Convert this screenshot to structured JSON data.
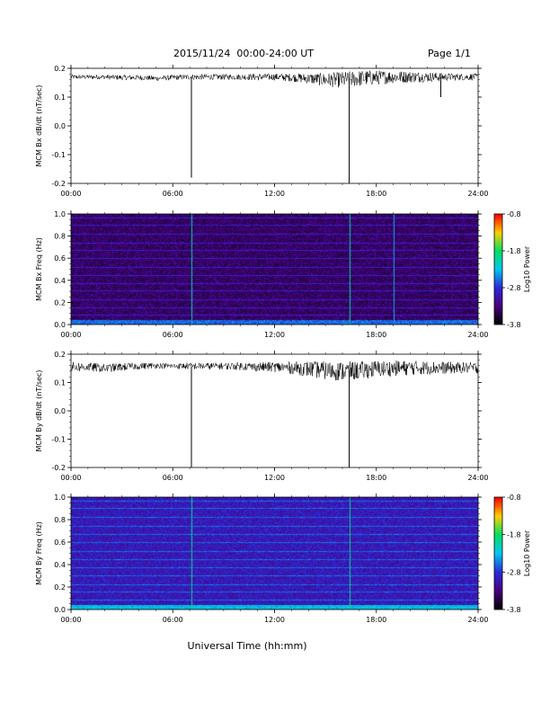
{
  "header": {
    "date_range": "2015/11/24  00:00-24:00 UT",
    "page": "Page 1/1"
  },
  "colors": {
    "trace": "#000000",
    "colormap": [
      "#000000",
      "#4b0082",
      "#2a2bd8",
      "#00c8f0",
      "#00e060",
      "#ffd000",
      "#ff0000"
    ]
  },
  "chart_data": [
    {
      "type": "line",
      "ylabel": "MCM Bx dB/dt (nT/sec)",
      "xlim": [
        0,
        24
      ],
      "ylim": [
        -0.2,
        0.2
      ],
      "x_ticks": [
        "00:00",
        "06:00",
        "12:00",
        "18:00",
        "24:00"
      ],
      "y_ticks": [
        "0.2",
        "0.1",
        "0.0",
        "-0.1",
        "-0.2"
      ],
      "y_tick_values": [
        0.2,
        0.1,
        0.0,
        -0.1,
        -0.2
      ],
      "series": [
        {
          "x": [
            0,
            1,
            2,
            3,
            4,
            5,
            6,
            7,
            8,
            9,
            10,
            11,
            12,
            13,
            14,
            15,
            16,
            17,
            18,
            19,
            20,
            21,
            22,
            23,
            24
          ],
          "y": [
            0.17,
            0.17,
            0.17,
            0.168,
            0.168,
            0.165,
            0.168,
            0.17,
            0.17,
            0.17,
            0.17,
            0.17,
            0.17,
            0.168,
            0.165,
            0.16,
            0.16,
            0.165,
            0.168,
            0.17,
            0.17,
            0.17,
            0.17,
            0.17,
            0.17
          ],
          "noise": [
            0.008,
            0.008,
            0.008,
            0.009,
            0.009,
            0.009,
            0.009,
            0.01,
            0.01,
            0.01,
            0.01,
            0.012,
            0.012,
            0.014,
            0.018,
            0.024,
            0.028,
            0.028,
            0.026,
            0.022,
            0.02,
            0.018,
            0.014,
            0.012,
            0.012
          ]
        }
      ],
      "spikes": [
        {
          "x": 7.1,
          "y": -0.18
        },
        {
          "x": 16.4,
          "y": -0.2
        },
        {
          "x": 21.8,
          "y": 0.1
        }
      ]
    },
    {
      "type": "heatmap",
      "ylabel": "MCM Bx Freq (Hz)",
      "colorbar_label": "Log10 Power",
      "xlim": [
        0,
        24
      ],
      "ylim": [
        0,
        1.0
      ],
      "x_ticks": [
        "00:00",
        "06:00",
        "12:00",
        "18:00",
        "24:00"
      ],
      "y_ticks": [
        "1.0",
        "0.8",
        "0.6",
        "0.4",
        "0.2",
        "0.0"
      ],
      "y_tick_values": [
        1.0,
        0.8,
        0.6,
        0.4,
        0.2,
        0.0
      ],
      "colorbar_ticks": [
        "-0.8",
        "-1.8",
        "-2.8",
        "-3.8"
      ],
      "colorbar_range": [
        -3.8,
        -0.8
      ],
      "base_level": -3.4,
      "harmonic_freqs": [
        0.08,
        0.15,
        0.22,
        0.3,
        0.37,
        0.44,
        0.52,
        0.6,
        0.67,
        0.74,
        0.82,
        0.9,
        0.97
      ],
      "harmonic_level": -2.9,
      "low_freq_level": -2.6,
      "vertical_events": [
        {
          "x": 7.1,
          "level": -2.0
        },
        {
          "x": 16.4,
          "level": -2.0
        },
        {
          "x": 19.0,
          "level": -2.4
        }
      ]
    },
    {
      "type": "line",
      "ylabel": "MCM By dB/dt (nT/sec)",
      "xlim": [
        0,
        24
      ],
      "ylim": [
        -0.2,
        0.2
      ],
      "x_ticks": [
        "00:00",
        "06:00",
        "12:00",
        "18:00",
        "24:00"
      ],
      "y_ticks": [
        "0.2",
        "0.1",
        "0.0",
        "-0.1",
        "-0.2"
      ],
      "y_tick_values": [
        0.2,
        0.1,
        0.0,
        -0.1,
        -0.2
      ],
      "series": [
        {
          "x": [
            0,
            1,
            2,
            3,
            4,
            5,
            6,
            7,
            8,
            9,
            10,
            11,
            12,
            13,
            14,
            15,
            16,
            17,
            18,
            19,
            20,
            21,
            22,
            23,
            24
          ],
          "y": [
            0.155,
            0.155,
            0.15,
            0.155,
            0.158,
            0.16,
            0.158,
            0.158,
            0.158,
            0.158,
            0.158,
            0.155,
            0.155,
            0.152,
            0.148,
            0.142,
            0.14,
            0.142,
            0.148,
            0.15,
            0.152,
            0.152,
            0.152,
            0.152,
            0.152
          ],
          "noise": [
            0.018,
            0.016,
            0.015,
            0.014,
            0.012,
            0.01,
            0.01,
            0.012,
            0.012,
            0.012,
            0.014,
            0.016,
            0.018,
            0.022,
            0.028,
            0.032,
            0.034,
            0.032,
            0.03,
            0.028,
            0.026,
            0.024,
            0.022,
            0.02,
            0.02
          ]
        }
      ],
      "spikes": [
        {
          "x": 7.1,
          "y": -0.2
        },
        {
          "x": 16.4,
          "y": -0.2
        }
      ]
    },
    {
      "type": "heatmap",
      "ylabel": "MCM By Freq (Hz)",
      "colorbar_label": "Log10 Power",
      "xlim": [
        0,
        24
      ],
      "ylim": [
        0,
        1.0
      ],
      "x_ticks": [
        "00:00",
        "06:00",
        "12:00",
        "18:00",
        "24:00"
      ],
      "y_ticks": [
        "1.0",
        "0.8",
        "0.6",
        "0.4",
        "0.2",
        "0.0"
      ],
      "y_tick_values": [
        1.0,
        0.8,
        0.6,
        0.4,
        0.2,
        0.0
      ],
      "colorbar_ticks": [
        "-0.8",
        "-1.8",
        "-2.8",
        "-3.8"
      ],
      "colorbar_range": [
        -3.8,
        -0.8
      ],
      "base_level": -3.0,
      "harmonic_freqs": [
        0.08,
        0.15,
        0.22,
        0.3,
        0.37,
        0.44,
        0.52,
        0.6,
        0.67,
        0.74,
        0.82,
        0.9,
        0.97
      ],
      "harmonic_level": -2.6,
      "low_freq_level": -2.3,
      "vertical_events": [
        {
          "x": 7.1,
          "level": -1.9
        },
        {
          "x": 16.4,
          "level": -1.9
        }
      ]
    }
  ],
  "xlabel": "Universal Time (hh:mm)"
}
